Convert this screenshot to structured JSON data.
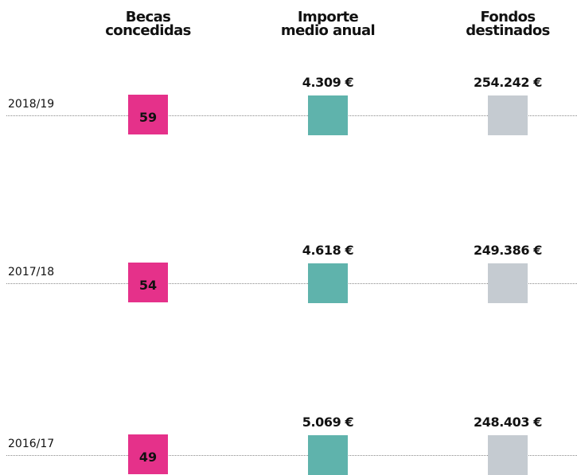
{
  "columns": [
    {
      "lines": [
        "Becas",
        "concedidas"
      ]
    },
    {
      "lines": [
        "Importe",
        "medio anual"
      ]
    },
    {
      "lines": [
        "Fondos",
        "destinados"
      ]
    }
  ],
  "rows": [
    {
      "year": "2018/19",
      "becas": "59",
      "importe": "4.309 €",
      "fondos": "254.242 €"
    },
    {
      "year": "2017/18",
      "becas": "54",
      "importe": "4.618 €",
      "fondos": "249.386 €"
    },
    {
      "year": "2016/17",
      "becas": "49",
      "importe": "5.069 €",
      "fondos": "248.403 €"
    }
  ]
}
